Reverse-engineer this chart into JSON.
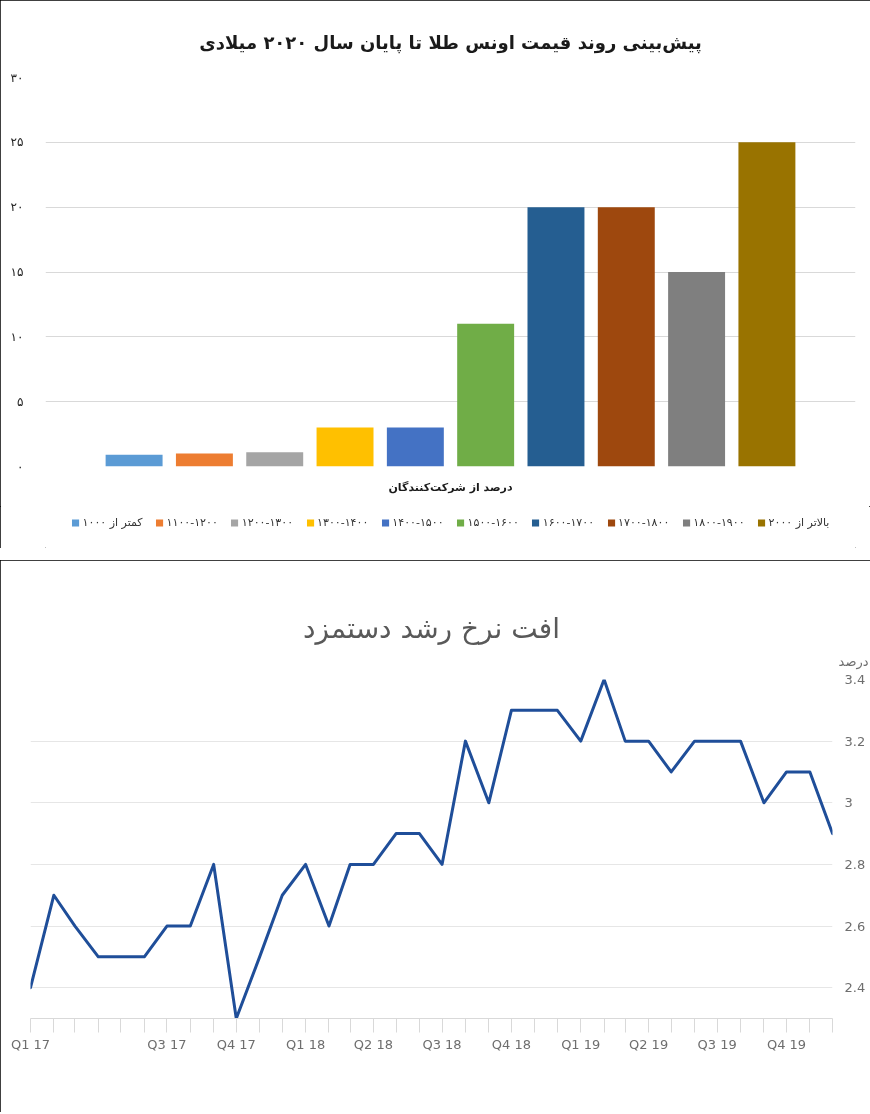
{
  "chart_data": [
    {
      "type": "bar",
      "title": "پیش‌بینی روند قیمت اونس طلا تا پایان سال ۲۰۲۰ میلادی",
      "xlabel": "درصد از شرکت‌کنندگان",
      "categories": [
        null
      ],
      "series": [
        {
          "name": "کمتر از ۱۰۰۰",
          "color": "#5b9bd5",
          "values": [
            0.9
          ]
        },
        {
          "name": "۱۱۰۰-۱۲۰۰",
          "color": "#ed7d31",
          "values": [
            1
          ]
        },
        {
          "name": "۱۲۰۰-۱۳۰۰",
          "color": "#a5a5a5",
          "values": [
            1.1
          ]
        },
        {
          "name": "۱۳۰۰-۱۴۰۰",
          "color": "#ffc000",
          "values": [
            3
          ]
        },
        {
          "name": "۱۴۰۰-۱۵۰۰",
          "color": "#4472c4",
          "values": [
            3
          ]
        },
        {
          "name": "۱۵۰۰-۱۶۰۰",
          "color": "#70ad47",
          "values": [
            11
          ]
        },
        {
          "name": "۱۶۰۰-۱۷۰۰",
          "color": "#255e91",
          "values": [
            20
          ]
        },
        {
          "name": "۱۷۰۰-۱۸۰۰",
          "color": "#9e480e",
          "values": [
            20
          ]
        },
        {
          "name": "۱۸۰۰-۱۹۰۰",
          "color": "#7f7f7f",
          "values": [
            15
          ]
        },
        {
          "name": "بالاتر از ۲۰۰۰",
          "color": "#997300",
          "values": [
            25
          ]
        }
      ],
      "ylim": [
        0,
        30
      ],
      "yticks": [
        {
          "value": 0,
          "label": "۰"
        },
        {
          "value": 5,
          "label": "۵"
        },
        {
          "value": 10,
          "label": "۱۰"
        },
        {
          "value": 15,
          "label": "۱۵"
        },
        {
          "value": 20,
          "label": "۲۰"
        },
        {
          "value": 25,
          "label": "۲۵"
        },
        {
          "value": 30,
          "label": "۳۰"
        }
      ],
      "grid": "y",
      "legend": "bottom",
      "tick_labels": "y"
    },
    {
      "type": "line",
      "title": "افت نرخ رشد دستمزد",
      "ylabel": "درصد",
      "x": [
        "2017-01",
        "2017-02",
        "2017-03",
        "2017-04",
        "2017-05",
        "2017-06",
        "2017-07",
        "2017-08",
        "2017-09",
        "2017-10",
        "2017-11",
        "2017-12",
        "2018-01",
        "2018-02",
        "2018-03",
        "2018-04",
        "2018-05",
        "2018-06",
        "2018-07",
        "2018-08",
        "2018-09",
        "2018-10",
        "2018-11",
        "2018-12",
        "2019-01",
        "2019-02",
        "2019-03",
        "2019-04",
        "2019-05",
        "2019-06",
        "2019-07",
        "2019-08",
        "2019-09",
        "2019-10",
        "2019-11",
        "2019-12"
      ],
      "series": [
        {
          "color": "#1f4e99",
          "values": [
            2.4,
            2.7,
            2.6,
            2.5,
            2.5,
            2.5,
            2.6,
            2.6,
            2.8,
            2.3,
            2.5,
            2.7,
            2.8,
            2.6,
            2.8,
            2.8,
            2.9,
            2.9,
            2.8,
            3.2,
            3.0,
            3.3,
            3.3,
            3.3,
            3.2,
            3.4,
            3.2,
            3.2,
            3.1,
            3.2,
            3.2,
            3.2,
            3.0,
            3.1,
            3.1,
            2.9
          ]
        }
      ],
      "xlim": [
        "2017-01",
        "2019-12"
      ],
      "xticks": [
        {
          "value": "2017-01",
          "label": "Q1 17"
        },
        {
          "value": "2017-02",
          "label": null
        },
        {
          "value": "2017-03",
          "label": null
        },
        {
          "value": "2017-04",
          "label": null
        },
        {
          "value": "2017-05",
          "label": null
        },
        {
          "value": "2017-06",
          "label": null
        },
        {
          "value": "2017-07",
          "label": "Q3 17"
        },
        {
          "value": "2017-08",
          "label": null
        },
        {
          "value": "2017-09",
          "label": null
        },
        {
          "value": "2017-10",
          "label": "Q4 17"
        },
        {
          "value": "2017-11",
          "label": null
        },
        {
          "value": "2017-12",
          "label": null
        },
        {
          "value": "2018-01",
          "label": "Q1 18"
        },
        {
          "value": "2018-02",
          "label": null
        },
        {
          "value": "2018-03",
          "label": null
        },
        {
          "value": "2018-04",
          "label": "Q2 18"
        },
        {
          "value": "2018-05",
          "label": null
        },
        {
          "value": "2018-06",
          "label": null
        },
        {
          "value": "2018-07",
          "label": "Q3 18"
        },
        {
          "value": "2018-08",
          "label": null
        },
        {
          "value": "2018-09",
          "label": null
        },
        {
          "value": "2018-10",
          "label": "Q4 18"
        },
        {
          "value": "2018-11",
          "label": null
        },
        {
          "value": "2018-12",
          "label": null
        },
        {
          "value": "2019-01",
          "label": "Q1 19"
        },
        {
          "value": "2019-02",
          "label": null
        },
        {
          "value": "2019-03",
          "label": null
        },
        {
          "value": "2019-04",
          "label": "Q2 19"
        },
        {
          "value": "2019-05",
          "label": null
        },
        {
          "value": "2019-06",
          "label": null
        },
        {
          "value": "2019-07",
          "label": "Q3 19"
        },
        {
          "value": "2019-08",
          "label": null
        },
        {
          "value": "2019-09",
          "label": null
        },
        {
          "value": "2019-10",
          "label": "Q4 19"
        },
        {
          "value": "2019-11",
          "label": null
        },
        {
          "value": "2019-12",
          "label": null
        }
      ],
      "ylim": [
        2.3,
        3.4
      ],
      "yticks": [
        2.4,
        2.6,
        2.8,
        3,
        3.2,
        3.4
      ],
      "grid": "y"
    }
  ]
}
